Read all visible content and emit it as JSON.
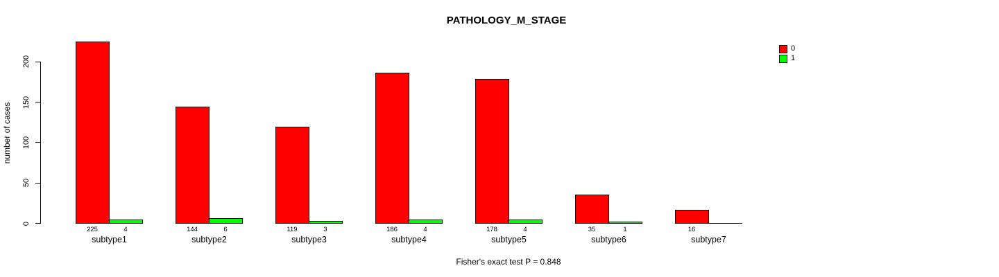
{
  "chart_data": {
    "type": "bar",
    "title": "PATHOLOGY_M_STAGE",
    "xlabel": "",
    "ylabel": "number of cases",
    "ylim": [
      0,
      230
    ],
    "yticks": [
      0,
      50,
      100,
      150,
      200
    ],
    "grid": false,
    "annotation": "Fisher's exact test P = 0.848",
    "categories": [
      "subtype1",
      "subtype2",
      "subtype3",
      "subtype4",
      "subtype5",
      "subtype6",
      "subtype7"
    ],
    "series": [
      {
        "name": "0",
        "color": "#FF0000",
        "values": [
          225,
          144,
          119,
          186,
          178,
          35,
          16
        ],
        "value_labels": [
          "225",
          "144",
          "119",
          "186",
          "178",
          "35",
          "16"
        ]
      },
      {
        "name": "1",
        "color": "#00FF00",
        "values": [
          4,
          6,
          3,
          4,
          4,
          1,
          0
        ],
        "value_labels": [
          "4",
          "6",
          "3",
          "4",
          "4",
          "1",
          ""
        ]
      }
    ],
    "legend": {
      "position": "top-right",
      "entries": [
        {
          "label": "0",
          "color": "#FF0000"
        },
        {
          "label": "1",
          "color": "#00FF00"
        }
      ]
    },
    "colors": {
      "axis": "#000000",
      "text": "#000000",
      "background": "#FFFFFF"
    }
  }
}
